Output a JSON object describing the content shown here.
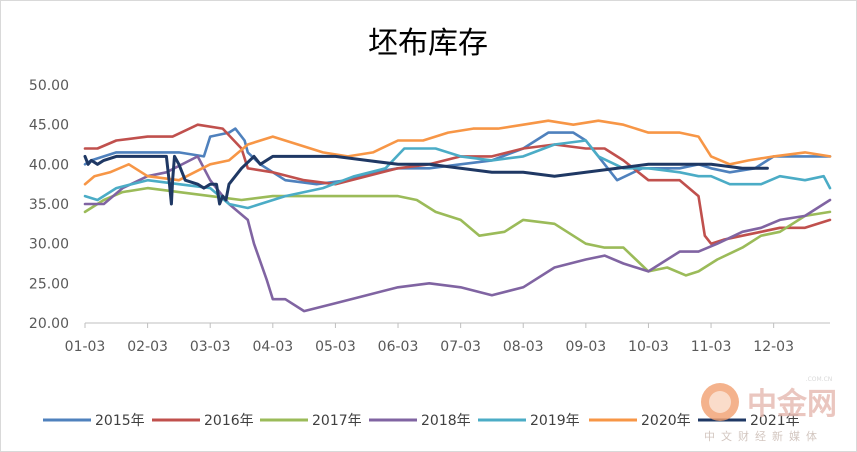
{
  "chart_data": {
    "type": "line",
    "title": "坯布库存",
    "xlabel": "",
    "ylabel": "",
    "ylim": [
      20,
      50
    ],
    "y_ticks": [
      "20.00",
      "25.00",
      "30.00",
      "35.00",
      "40.00",
      "45.00",
      "50.00"
    ],
    "x_tick_labels": [
      "01-03",
      "02-03",
      "03-03",
      "04-03",
      "05-03",
      "06-03",
      "07-03",
      "08-03",
      "09-03",
      "10-03",
      "11-03",
      "12-03"
    ],
    "x_domain": [
      1,
      12.9
    ],
    "grid": false,
    "legend_position": "bottom",
    "series": [
      {
        "name": "2015年",
        "color": "#4f81bd",
        "x": [
          1,
          1.1,
          1.5,
          2,
          2.5,
          2.9,
          3.0,
          3.3,
          3.4,
          3.55,
          3.6,
          3.8,
          4.2,
          4.7,
          5.2,
          5.6,
          6,
          6.5,
          7,
          7.5,
          8,
          8.4,
          8.8,
          9.0,
          9.2,
          9.5,
          9.9,
          10.5,
          10.8,
          11.0,
          11.3,
          11.7,
          12.0,
          12.5,
          12.9
        ],
        "y": [
          40,
          40.5,
          41.5,
          41.5,
          41.5,
          41,
          43.5,
          44,
          44.5,
          43,
          41.5,
          40,
          38,
          37.5,
          38,
          39,
          39.5,
          39.5,
          40,
          40.5,
          42,
          44,
          44,
          43,
          41,
          38,
          39.5,
          39.5,
          40,
          39.5,
          39,
          39.5,
          41,
          41,
          41
        ]
      },
      {
        "name": "2016年",
        "color": "#c0504d",
        "x": [
          1,
          1.2,
          1.5,
          2,
          2.4,
          2.8,
          3.2,
          3.5,
          3.6,
          4,
          4.5,
          5,
          5.5,
          6,
          6.5,
          7,
          7.5,
          8,
          8.5,
          9,
          9.3,
          9.6,
          10,
          10.5,
          10.8,
          10.9,
          11.0,
          11.2,
          11.5,
          11.8,
          12.1,
          12.5,
          12.9
        ],
        "y": [
          42,
          42,
          43,
          43.5,
          43.5,
          45,
          44.5,
          42,
          39.5,
          39,
          38,
          37.5,
          38.5,
          39.5,
          40,
          41,
          41,
          42,
          42.5,
          42,
          42,
          40.5,
          38,
          38,
          36,
          31,
          30,
          30.5,
          31,
          31.5,
          32,
          32,
          33
        ]
      },
      {
        "name": "2017年",
        "color": "#9bbb59",
        "x": [
          1,
          1.3,
          1.6,
          2,
          2.5,
          3,
          3.5,
          4,
          4.5,
          5,
          5.5,
          6,
          6.3,
          6.6,
          7,
          7.3,
          7.7,
          8,
          8.5,
          9,
          9.3,
          9.6,
          9.8,
          10,
          10.3,
          10.6,
          10.8,
          11.1,
          11.5,
          11.8,
          12.1,
          12.5,
          12.9
        ],
        "y": [
          34,
          35.5,
          36.5,
          37,
          36.5,
          36,
          35.5,
          36,
          36,
          36,
          36,
          36,
          35.5,
          34,
          33,
          31,
          31.5,
          33,
          32.5,
          30,
          29.5,
          29.5,
          28,
          26.5,
          27,
          26,
          26.5,
          28,
          29.5,
          31,
          31.5,
          33.5,
          34
        ]
      },
      {
        "name": "2018年",
        "color": "#8064a2",
        "x": [
          1,
          1.3,
          1.6,
          2,
          2.3,
          2.8,
          3.0,
          3.3,
          3.6,
          3.7,
          3.9,
          4.0,
          4.2,
          4.5,
          5,
          5.5,
          6,
          6.5,
          7,
          7.5,
          8,
          8.5,
          9,
          9.3,
          9.6,
          10,
          10.5,
          10.8,
          11.1,
          11.5,
          11.8,
          12.1,
          12.5,
          12.9
        ],
        "y": [
          35,
          35,
          37,
          38.5,
          39,
          41,
          38,
          35,
          33,
          30,
          25.5,
          23,
          23,
          21.5,
          22.5,
          23.5,
          24.5,
          25,
          24.5,
          23.5,
          24.5,
          27,
          28,
          28.5,
          27.5,
          26.5,
          29,
          29,
          30,
          31.5,
          32,
          33,
          33.5,
          35.5
        ]
      },
      {
        "name": "2019年",
        "color": "#4bacc6",
        "x": [
          1,
          1.2,
          1.5,
          2,
          2.5,
          3,
          3.3,
          3.6,
          3.8,
          4.2,
          4.8,
          5.3,
          5.8,
          6.1,
          6.6,
          7,
          7.5,
          8,
          8.5,
          9,
          9.2,
          9.6,
          10,
          10.5,
          10.8,
          11.0,
          11.3,
          11.8,
          12.1,
          12.5,
          12.8,
          12.9
        ],
        "y": [
          36,
          35.5,
          37,
          38,
          37.5,
          37,
          35,
          34.5,
          35,
          36,
          37,
          38.5,
          39.5,
          42,
          42,
          41,
          40.5,
          41,
          42.5,
          43,
          41,
          39.5,
          39.5,
          39,
          38.5,
          38.5,
          37.5,
          37.5,
          38.5,
          38,
          38.5,
          37
        ]
      },
      {
        "name": "2020年",
        "color": "#f79646",
        "x": [
          1,
          1.15,
          1.4,
          1.7,
          2,
          2.5,
          3,
          3.3,
          3.6,
          4,
          4.4,
          4.8,
          5.2,
          5.6,
          6,
          6.4,
          6.8,
          7.2,
          7.6,
          8,
          8.4,
          8.8,
          9.2,
          9.6,
          10,
          10.5,
          10.8,
          11.0,
          11.3,
          11.6,
          12,
          12.5,
          12.9
        ],
        "y": [
          37.5,
          38.5,
          39,
          40,
          38.5,
          38,
          40,
          40.5,
          42.5,
          43.5,
          42.5,
          41.5,
          41,
          41.5,
          43,
          43,
          44,
          44.5,
          44.5,
          45,
          45.5,
          45,
          45.5,
          45,
          44,
          44,
          43.5,
          41,
          40,
          40.5,
          41,
          41.5,
          41
        ]
      },
      {
        "name": "2021年",
        "color": "#1f3864",
        "x": [
          1,
          1.05,
          1.1,
          1.2,
          1.3,
          1.5,
          2,
          2.3,
          2.35,
          2.38,
          2.4,
          2.43,
          2.5,
          2.6,
          2.8,
          2.9,
          3.0,
          3.1,
          3.15,
          3.2,
          3.25,
          3.3,
          3.5,
          3.7,
          3.8,
          4,
          4.5,
          5,
          5.5,
          6,
          6.5,
          7,
          7.5,
          8,
          8.5,
          9,
          9.5,
          10,
          10.5,
          11,
          11.5,
          11.9
        ],
        "y": [
          41,
          40,
          40.5,
          40,
          40.5,
          41,
          41,
          41,
          37.5,
          35,
          38,
          41,
          40,
          38,
          37.5,
          37,
          37.5,
          37.5,
          35,
          36,
          35.5,
          37.5,
          39.5,
          41,
          40,
          41,
          41,
          41,
          40.5,
          40,
          40,
          39.5,
          39,
          39,
          38.5,
          39,
          39.5,
          40,
          40,
          40,
          39.5,
          39.5
        ]
      }
    ]
  },
  "watermark": {
    "brand": "中金网",
    "subtitle": "中文财经新媒体",
    "domain": ".COM.CN"
  }
}
